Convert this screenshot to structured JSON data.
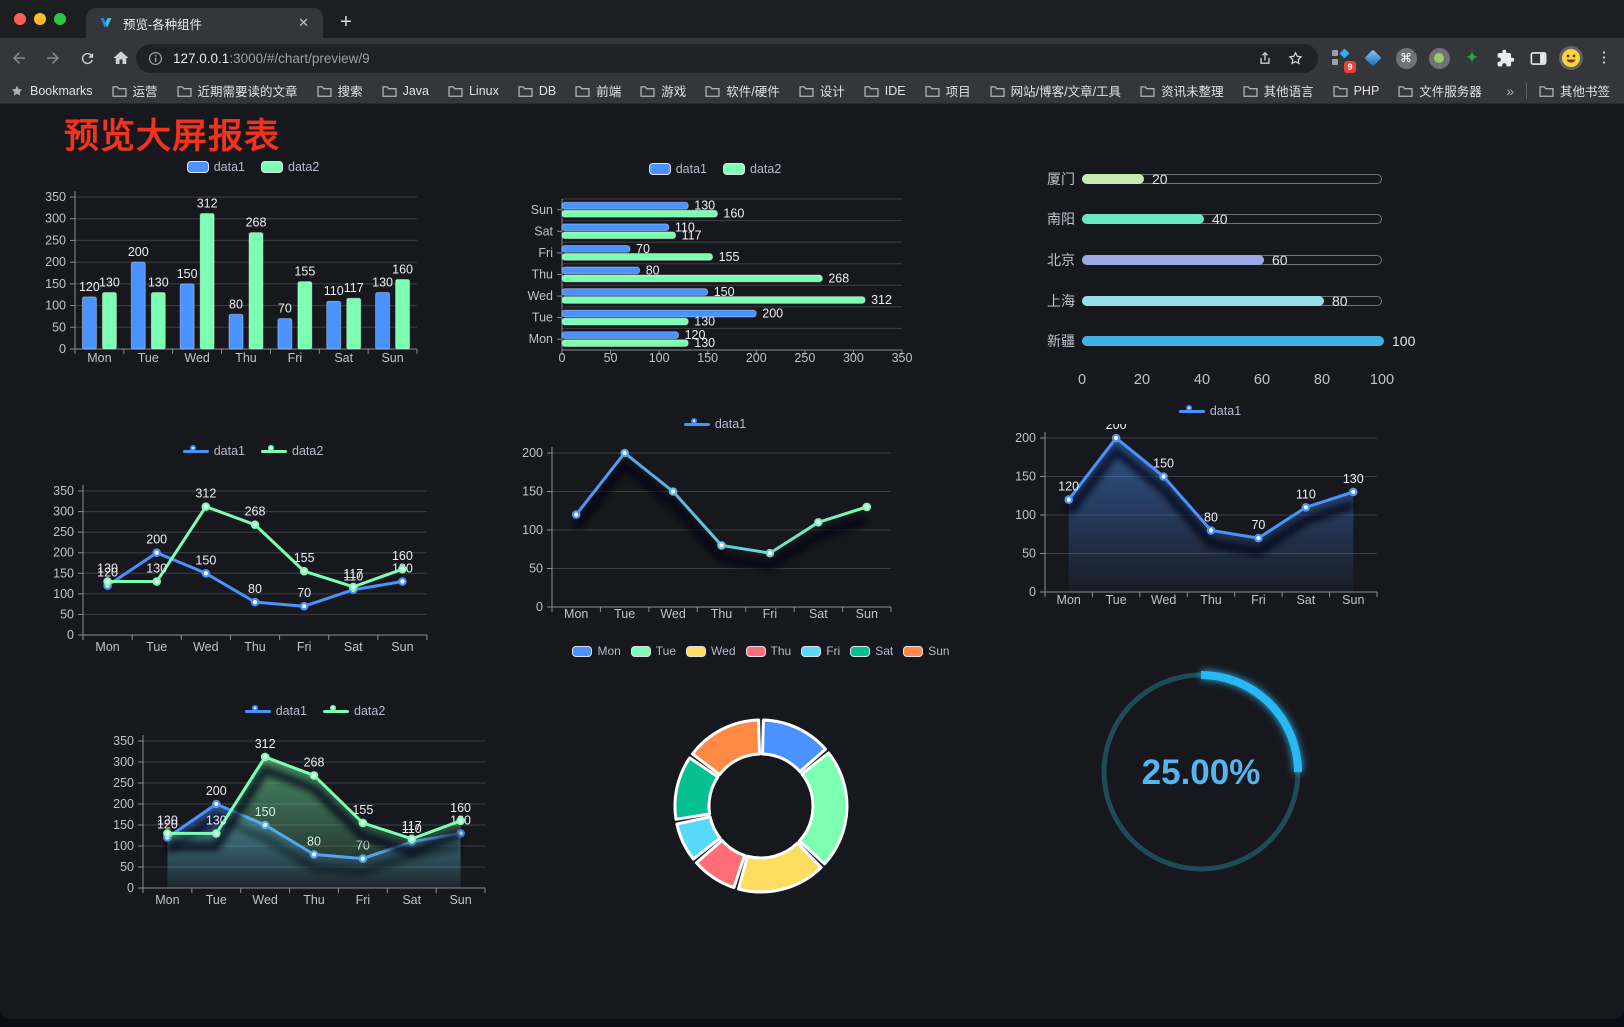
{
  "browser": {
    "tab_title": "预览-各种组件",
    "close_glyph": "✕",
    "newtab_glyph": "+",
    "url_host": "127.0.0.1",
    "url_rest": ":3000/#/chart/preview/9",
    "extension_badge": "9",
    "kebab_glyph": "⋮",
    "cmd_glyph": "⌘",
    "star4_glyph": "✦",
    "bookmarks_label": "Bookmarks",
    "bookmarks": [
      "运营",
      "近期需要读的文章",
      "搜索",
      "Java",
      "Linux",
      "DB",
      "前端",
      "游戏",
      "软件/硬件",
      "设计",
      "IDE",
      "项目",
      "网站/博客/文章/工具",
      "资讯未整理",
      "其他语言",
      "PHP",
      "文件服务器"
    ],
    "bookmarks_overflow": "»",
    "other_bookmarks": "其他书签"
  },
  "page": {
    "title": "预览大屏报表",
    "title_color": "#f5321d"
  },
  "palette": {
    "data1": "#4992ff",
    "data2": "#7cffb2",
    "axis_text": "#c2c1d0",
    "grid_line": "#3e3e49",
    "axis_line": "#8a8b94"
  },
  "chart_data": [
    {
      "id": "bar",
      "type": "bar",
      "categories": [
        "Mon",
        "Tue",
        "Wed",
        "Thu",
        "Fri",
        "Sat",
        "Sun"
      ],
      "series": [
        {
          "name": "data1",
          "color": "#4992ff",
          "values": [
            120,
            200,
            150,
            80,
            70,
            110,
            130
          ],
          "labels": true
        },
        {
          "name": "data2",
          "color": "#7cffb2",
          "values": [
            130,
            130,
            312,
            268,
            155,
            117,
            160
          ],
          "labels": true
        }
      ],
      "ylim": [
        0,
        350
      ],
      "ytick_step": 50,
      "legend_position": "top",
      "grid": true
    },
    {
      "id": "hbar",
      "type": "bar-horizontal",
      "categories": [
        "Mon",
        "Tue",
        "Wed",
        "Thu",
        "Fri",
        "Sat",
        "Sun"
      ],
      "series": [
        {
          "name": "data1",
          "color": "#4992ff",
          "values": [
            120,
            200,
            150,
            80,
            70,
            110,
            130
          ],
          "labels": true
        },
        {
          "name": "data2",
          "color": "#7cffb2",
          "values": [
            130,
            130,
            312,
            268,
            155,
            117,
            160
          ],
          "labels": true
        }
      ],
      "xlim": [
        0,
        350
      ],
      "xtick_step": 50,
      "legend_position": "top",
      "grid": true
    },
    {
      "id": "progress",
      "type": "progress-bars",
      "max": 100,
      "xticks": [
        0,
        20,
        40,
        60,
        80,
        100
      ],
      "items": [
        {
          "label": "厦门",
          "value": 20,
          "color": "#c4ebad"
        },
        {
          "label": "南阳",
          "value": 40,
          "color": "#6be6c1"
        },
        {
          "label": "北京",
          "value": 60,
          "color": "#a0a7e6"
        },
        {
          "label": "上海",
          "value": 80,
          "color": "#96dee8"
        },
        {
          "label": "新疆",
          "value": 100,
          "color": "#3fb1e3"
        }
      ]
    },
    {
      "id": "line2",
      "type": "line",
      "categories": [
        "Mon",
        "Tue",
        "Wed",
        "Thu",
        "Fri",
        "Sat",
        "Sun"
      ],
      "series": [
        {
          "name": "data1",
          "color": "#4992ff",
          "values": [
            120,
            200,
            150,
            80,
            70,
            110,
            130
          ],
          "labels": true
        },
        {
          "name": "data2",
          "color": "#7cffb2",
          "values": [
            130,
            130,
            312,
            268,
            155,
            117,
            160
          ],
          "labels": true
        }
      ],
      "ylim": [
        0,
        350
      ],
      "ytick_step": 50,
      "legend_position": "top",
      "grid": true
    },
    {
      "id": "line_gradient",
      "type": "line",
      "categories": [
        "Mon",
        "Tue",
        "Wed",
        "Thu",
        "Fri",
        "Sat",
        "Sun"
      ],
      "series": [
        {
          "name": "data1",
          "color": "#4992ff",
          "gradient": [
            "#4992ff",
            "#7cffb2"
          ],
          "values": [
            120,
            200,
            150,
            80,
            70,
            110,
            130
          ],
          "labels": false
        }
      ],
      "ylim": [
        0,
        200
      ],
      "ytick_step": 50,
      "shadow": true,
      "legend_position": "top",
      "grid": true
    },
    {
      "id": "area1",
      "type": "area",
      "categories": [
        "Mon",
        "Tue",
        "Wed",
        "Thu",
        "Fri",
        "Sat",
        "Sun"
      ],
      "series": [
        {
          "name": "data1",
          "color": "#4992ff",
          "area": true,
          "values": [
            120,
            200,
            150,
            80,
            70,
            110,
            130
          ],
          "labels": true
        }
      ],
      "ylim": [
        0,
        200
      ],
      "ytick_step": 50,
      "shadow": true,
      "legend_position": "top",
      "grid": true
    },
    {
      "id": "area2",
      "type": "area",
      "categories": [
        "Mon",
        "Tue",
        "Wed",
        "Thu",
        "Fri",
        "Sat",
        "Sun"
      ],
      "series": [
        {
          "name": "data1",
          "color": "#4992ff",
          "area": true,
          "values": [
            120,
            200,
            150,
            80,
            70,
            110,
            130
          ],
          "labels": true
        },
        {
          "name": "data2",
          "color": "#7cffb2",
          "area": true,
          "values": [
            130,
            130,
            312,
            268,
            155,
            117,
            160
          ],
          "labels": true
        }
      ],
      "ylim": [
        0,
        350
      ],
      "ytick_step": 50,
      "shadow": true,
      "legend_position": "top",
      "grid": true
    },
    {
      "id": "donut",
      "type": "pie",
      "categories": [
        "Mon",
        "Tue",
        "Wed",
        "Thu",
        "Fri",
        "Sat",
        "Sun"
      ],
      "values": [
        120,
        200,
        150,
        80,
        70,
        110,
        130
      ],
      "colors": [
        "#4992ff",
        "#7cffb2",
        "#fddd60",
        "#ff6e76",
        "#58d9f9",
        "#05c091",
        "#ff8a45"
      ],
      "legend_position": "top"
    },
    {
      "id": "gauge",
      "type": "gauge",
      "percent": 25,
      "display": "25.00%",
      "color": "#2ab8f5",
      "track_color": "#1d4b58",
      "text_color": "#55b5f0"
    }
  ]
}
